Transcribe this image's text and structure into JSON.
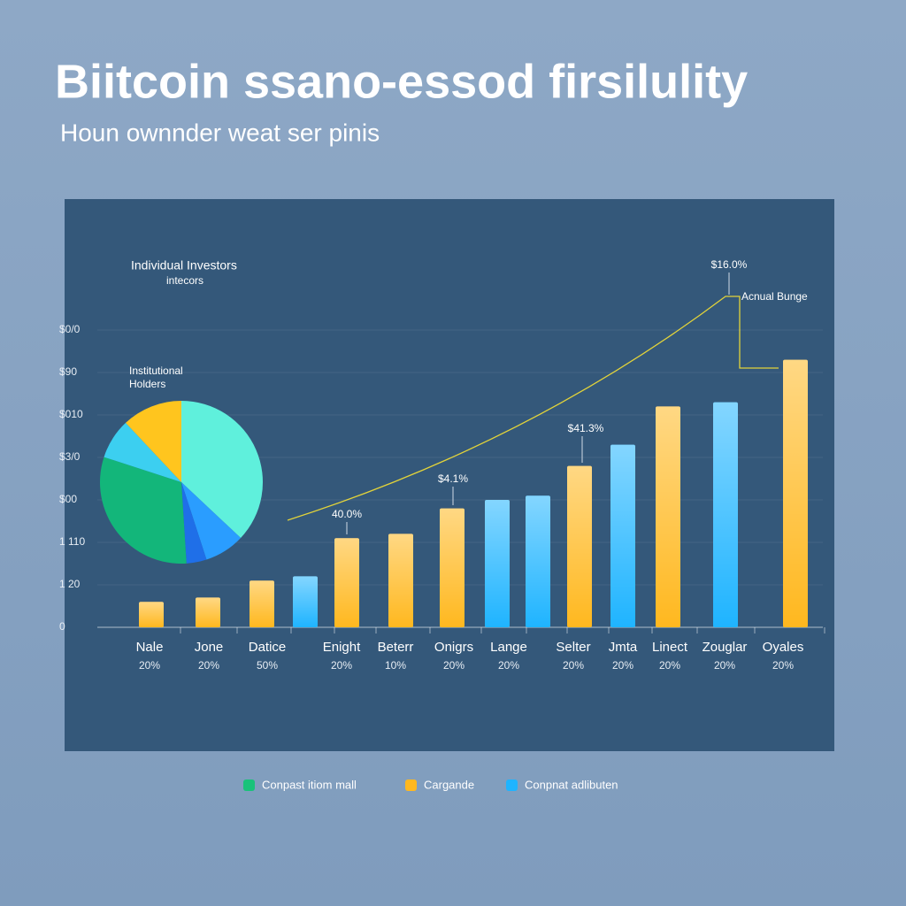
{
  "chart_data": {
    "type": "bar",
    "title": "Biitcoin ssano-essod firsilulity",
    "subtitle": "Houn ownnder weat ser pinis",
    "categories": [
      "Nale",
      "Jone",
      "Datice",
      null,
      "Enight",
      "Beterr",
      "Onigrs",
      "Lange",
      null,
      "Selter",
      "Jmta",
      "Linect",
      "Zouglar",
      "Oyales"
    ],
    "sublabels": [
      "20%",
      "20%",
      "50%",
      null,
      "20%",
      "10%",
      "20%",
      "20%",
      null,
      "20%",
      "20%",
      "20%",
      "20%",
      "20%"
    ],
    "values": [
      0.6,
      0.7,
      1.1,
      1.2,
      2.1,
      2.2,
      2.8,
      3.0,
      3.1,
      3.8,
      4.3,
      5.2,
      5.3,
      6.3
    ],
    "colors": [
      "#ffb81f",
      "#ffb81f",
      "#ffb81f",
      "#1fb4ff",
      "#ffb81f",
      "#ffb81f",
      "#ffb81f",
      "#1fb4ff",
      "#1fb4ff",
      "#ffb81f",
      "#1fb4ff",
      "#ffb81f",
      "#1fb4ff",
      "#ffb81f"
    ],
    "ylim": [
      0,
      7
    ],
    "yticks": [
      {
        "value": 0,
        "label": "0"
      },
      {
        "value": 1,
        "label": "1 20"
      },
      {
        "value": 2,
        "label": "1 110"
      },
      {
        "value": 3,
        "label": "$00"
      },
      {
        "value": 4,
        "label": "$3/0"
      },
      {
        "value": 5,
        "label": "$010"
      },
      {
        "value": 6,
        "label": "$90"
      },
      {
        "value": 7,
        "label": "$0/0"
      }
    ],
    "grid": true,
    "pie": {
      "values": [
        37,
        8,
        4,
        31,
        8,
        12
      ],
      "colors": [
        "#5ff0dc",
        "#2a9dff",
        "#1f6fe8",
        "#13b67a",
        "#3ccff0",
        "#ffc51e"
      ]
    },
    "annotations": [
      "Individual Investors",
      "intecors",
      "Institutional",
      "Holders",
      "40.0%",
      "$4.1%",
      "$41.3%",
      "$16.0%",
      "Acnual Bunge"
    ],
    "legend": [
      {
        "name": "Conpast itiom mall",
        "color": "#19c27a"
      },
      {
        "name": "Cargande",
        "color": "#ffb81f"
      },
      {
        "name": "Conpnat adlibuten",
        "color": "#1fb4ff"
      }
    ]
  }
}
